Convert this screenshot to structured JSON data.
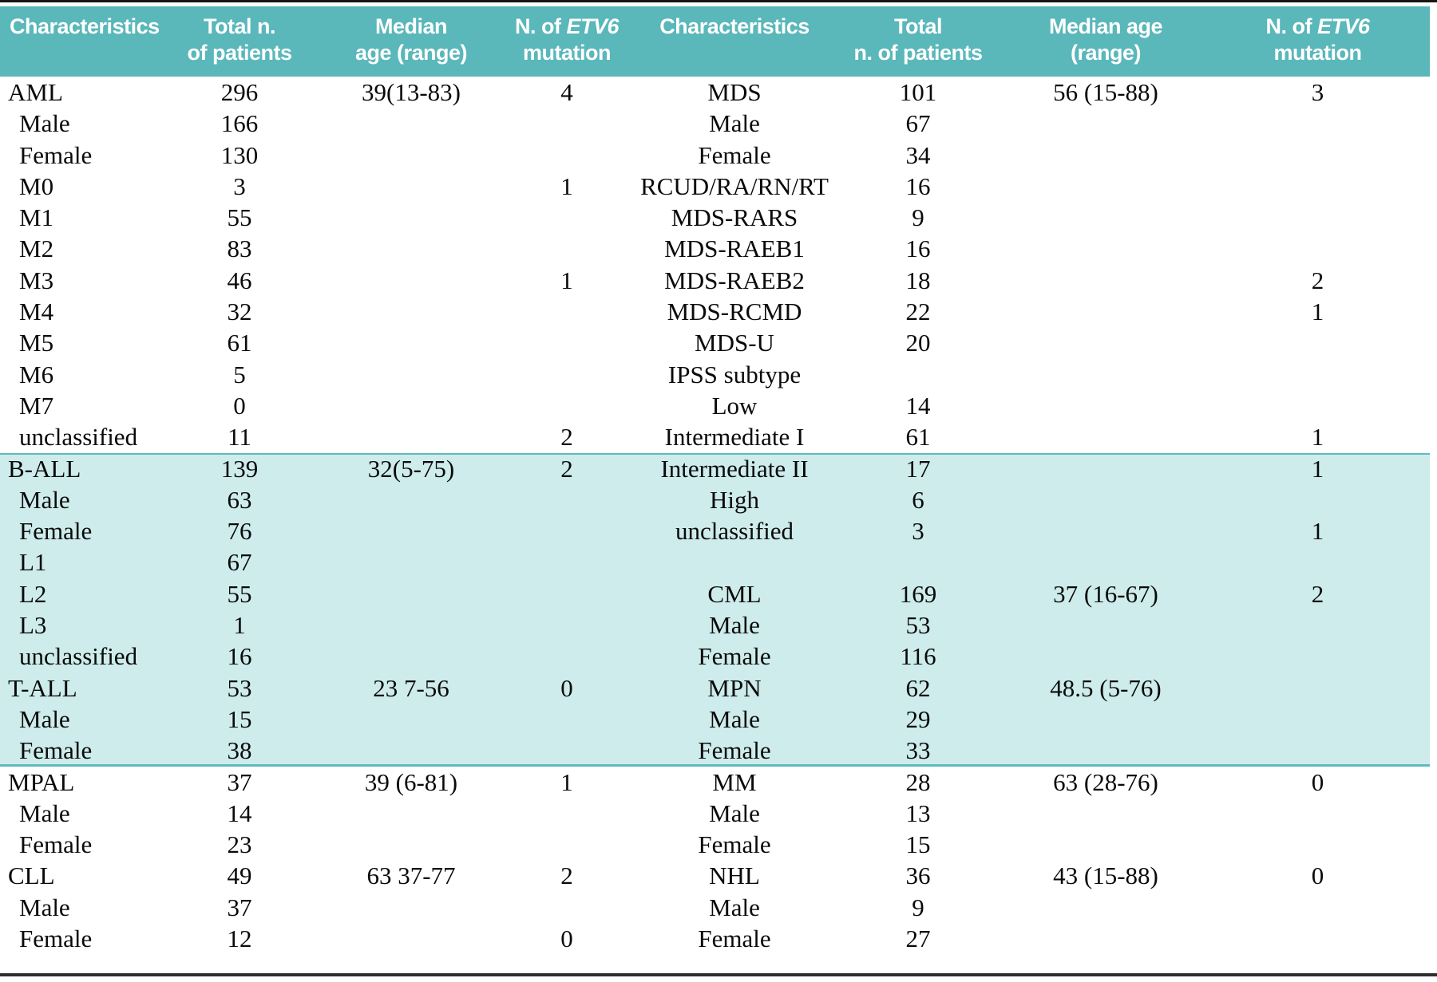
{
  "colors": {
    "header_bg": "#5ab7ba",
    "band_bg": "#cdeceb",
    "band_line": "#5fbabd",
    "top_rule": "#161616",
    "bottom_rule": "#2e2e2e",
    "header_text": "#ffffff",
    "body_text": "#0a0a0a"
  },
  "columns": [
    {
      "line1": "Characteristics",
      "line2": ""
    },
    {
      "line1": "Total n.",
      "line2": "of patients"
    },
    {
      "line1": "Median",
      "line2": "age (range)"
    },
    {
      "line1_pre": "N. of ",
      "line1_italic": "ETV6",
      "line2": "mutation"
    },
    {
      "line1": "Characteristics",
      "line2": ""
    },
    {
      "line1": "Total",
      "line2": "n. of patients"
    },
    {
      "line1": "Median age",
      "line2": "(range)"
    },
    {
      "line1_pre": "N. of ",
      "line1_italic": "ETV6",
      "line2": "mutation"
    }
  ],
  "rows": [
    {
      "cells": [
        "AML",
        "296",
        "39(13-83)",
        "4",
        "MDS",
        "101",
        "56 (15-88)",
        "3"
      ],
      "indent": false,
      "band": false
    },
    {
      "cells": [
        "Male",
        "166",
        "",
        "",
        "Male",
        "67",
        "",
        ""
      ],
      "indent": true,
      "band": false
    },
    {
      "cells": [
        "Female",
        "130",
        "",
        "",
        "Female",
        "34",
        "",
        ""
      ],
      "indent": true,
      "band": false
    },
    {
      "cells": [
        "M0",
        "3",
        "",
        "1",
        "RCUD/RA/RN/RT",
        "16",
        "",
        ""
      ],
      "indent": true,
      "band": false
    },
    {
      "cells": [
        "M1",
        "55",
        "",
        "",
        "MDS-RARS",
        "9",
        "",
        ""
      ],
      "indent": true,
      "band": false
    },
    {
      "cells": [
        "M2",
        "83",
        "",
        "",
        "MDS-RAEB1",
        "16",
        "",
        ""
      ],
      "indent": true,
      "band": false
    },
    {
      "cells": [
        "M3",
        "46",
        "",
        "1",
        "MDS-RAEB2",
        "18",
        "",
        "2"
      ],
      "indent": true,
      "band": false
    },
    {
      "cells": [
        "M4",
        "32",
        "",
        "",
        "MDS-RCMD",
        "22",
        "",
        "1"
      ],
      "indent": true,
      "band": false
    },
    {
      "cells": [
        "M5",
        "61",
        "",
        "",
        "MDS-U",
        "20",
        "",
        ""
      ],
      "indent": true,
      "band": false
    },
    {
      "cells": [
        "M6",
        "5",
        "",
        "",
        "IPSS subtype",
        "",
        "",
        ""
      ],
      "indent": true,
      "band": false
    },
    {
      "cells": [
        "M7",
        "0",
        "",
        "",
        "Low",
        "14",
        "",
        ""
      ],
      "indent": true,
      "band": false
    },
    {
      "cells": [
        "unclassified",
        "11",
        "",
        "2",
        "Intermediate I",
        "61",
        "",
        "1"
      ],
      "indent": true,
      "band": false
    },
    {
      "cells": [
        "B-ALL",
        "139",
        "32(5-75)",
        "2",
        "Intermediate II",
        "17",
        "",
        "1"
      ],
      "indent": false,
      "band": true
    },
    {
      "cells": [
        "Male",
        "63",
        "",
        "",
        "High",
        "6",
        "",
        ""
      ],
      "indent": true,
      "band": true
    },
    {
      "cells": [
        "Female",
        "76",
        "",
        "",
        "unclassified",
        "3",
        "",
        "1"
      ],
      "indent": true,
      "band": true
    },
    {
      "cells": [
        "L1",
        "67",
        "",
        "",
        "",
        "",
        "",
        ""
      ],
      "indent": true,
      "band": true
    },
    {
      "cells": [
        "L2",
        "55",
        "",
        "",
        "CML",
        "169",
        "37 (16-67)",
        "2"
      ],
      "indent": true,
      "band": true
    },
    {
      "cells": [
        "L3",
        "1",
        "",
        "",
        "Male",
        "53",
        "",
        ""
      ],
      "indent": true,
      "band": true
    },
    {
      "cells": [
        "unclassified",
        "16",
        "",
        "",
        "Female",
        "116",
        "",
        ""
      ],
      "indent": true,
      "band": true
    },
    {
      "cells": [
        "T-ALL",
        "53",
        "23 7-56",
        "0",
        "MPN",
        "62",
        "48.5 (5-76)",
        ""
      ],
      "indent": false,
      "band": true
    },
    {
      "cells": [
        "Male",
        "15",
        "",
        "",
        "Male",
        "29",
        "",
        ""
      ],
      "indent": true,
      "band": true
    },
    {
      "cells": [
        "Female",
        "38",
        "",
        "",
        "Female",
        "33",
        "",
        ""
      ],
      "indent": true,
      "band": true
    },
    {
      "cells": [
        "MPAL",
        "37",
        "39 (6-81)",
        "1",
        "MM",
        "28",
        "63 (28-76)",
        "0"
      ],
      "indent": false,
      "band": false
    },
    {
      "cells": [
        "Male",
        "14",
        "",
        "",
        "Male",
        "13",
        "",
        ""
      ],
      "indent": true,
      "band": false
    },
    {
      "cells": [
        "Female",
        "23",
        "",
        "",
        "Female",
        "15",
        "",
        ""
      ],
      "indent": true,
      "band": false
    },
    {
      "cells": [
        "CLL",
        "49",
        "63 37-77",
        "2",
        "NHL",
        "36",
        "43 (15-88)",
        "0"
      ],
      "indent": false,
      "band": false
    },
    {
      "cells": [
        "Male",
        "37",
        "",
        "",
        "Male",
        "9",
        "",
        ""
      ],
      "indent": true,
      "band": false
    },
    {
      "cells": [
        "Female",
        "12",
        "",
        "0",
        "Female",
        "27",
        "",
        ""
      ],
      "indent": true,
      "band": false
    }
  ]
}
